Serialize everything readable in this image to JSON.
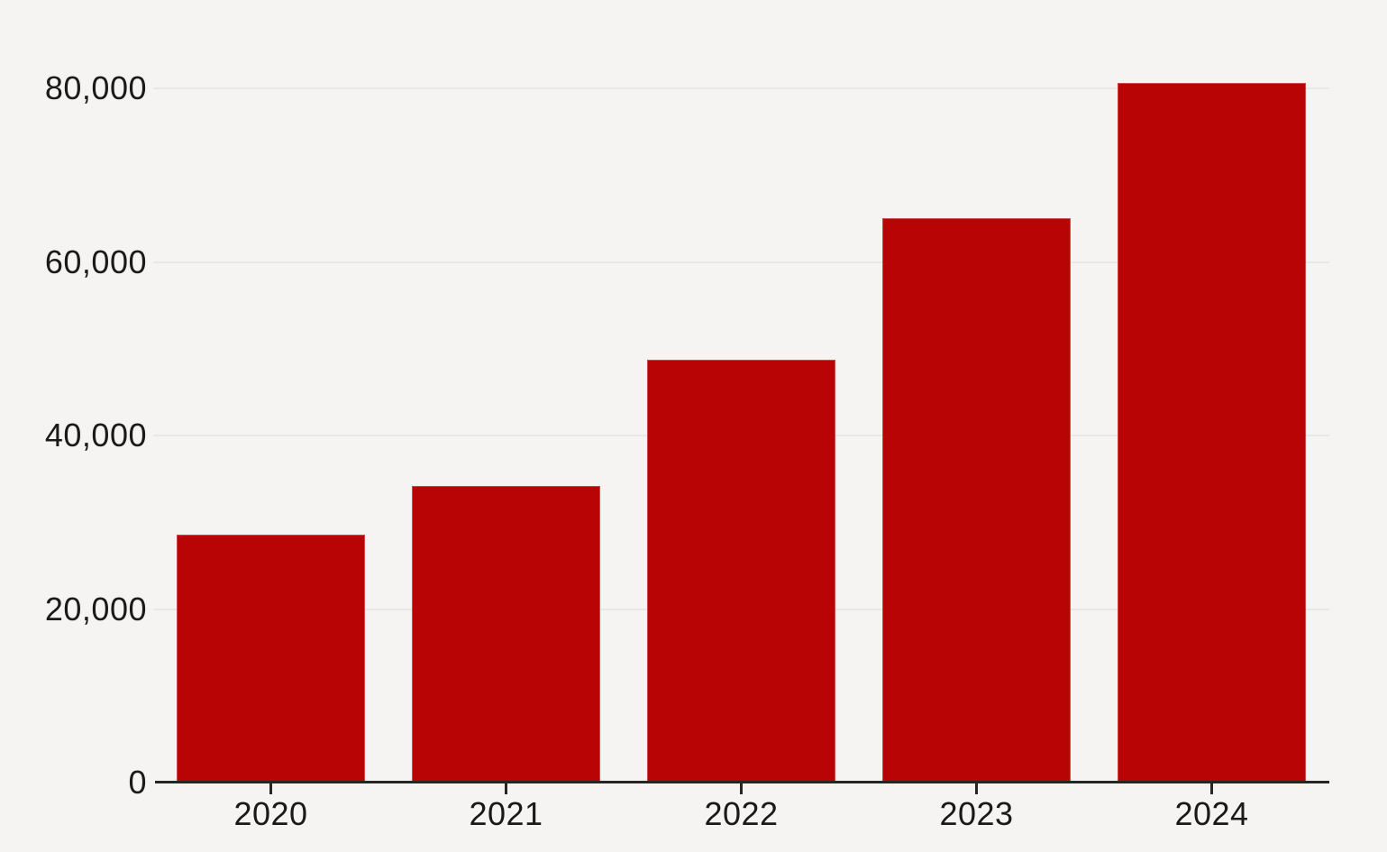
{
  "chart_data": {
    "type": "bar",
    "categories": [
      "2020",
      "2021",
      "2022",
      "2023",
      "2024"
    ],
    "values": [
      28600,
      34200,
      48700,
      65000,
      80600
    ],
    "title": "",
    "xlabel": "",
    "ylabel": "",
    "ylim": [
      0,
      84000
    ],
    "yticks": [
      0,
      20000,
      40000,
      60000,
      80000
    ],
    "ytick_labels": [
      "0",
      "20,000",
      "40,000",
      "60,000",
      "80,000"
    ],
    "grid": "horizontal-only",
    "legend": "none",
    "colors": {
      "background": "#f5f4f2",
      "bar": "#b80404",
      "gridline": "#e9e8e5",
      "axis": "#262626",
      "text": "#1a1a1a"
    }
  }
}
